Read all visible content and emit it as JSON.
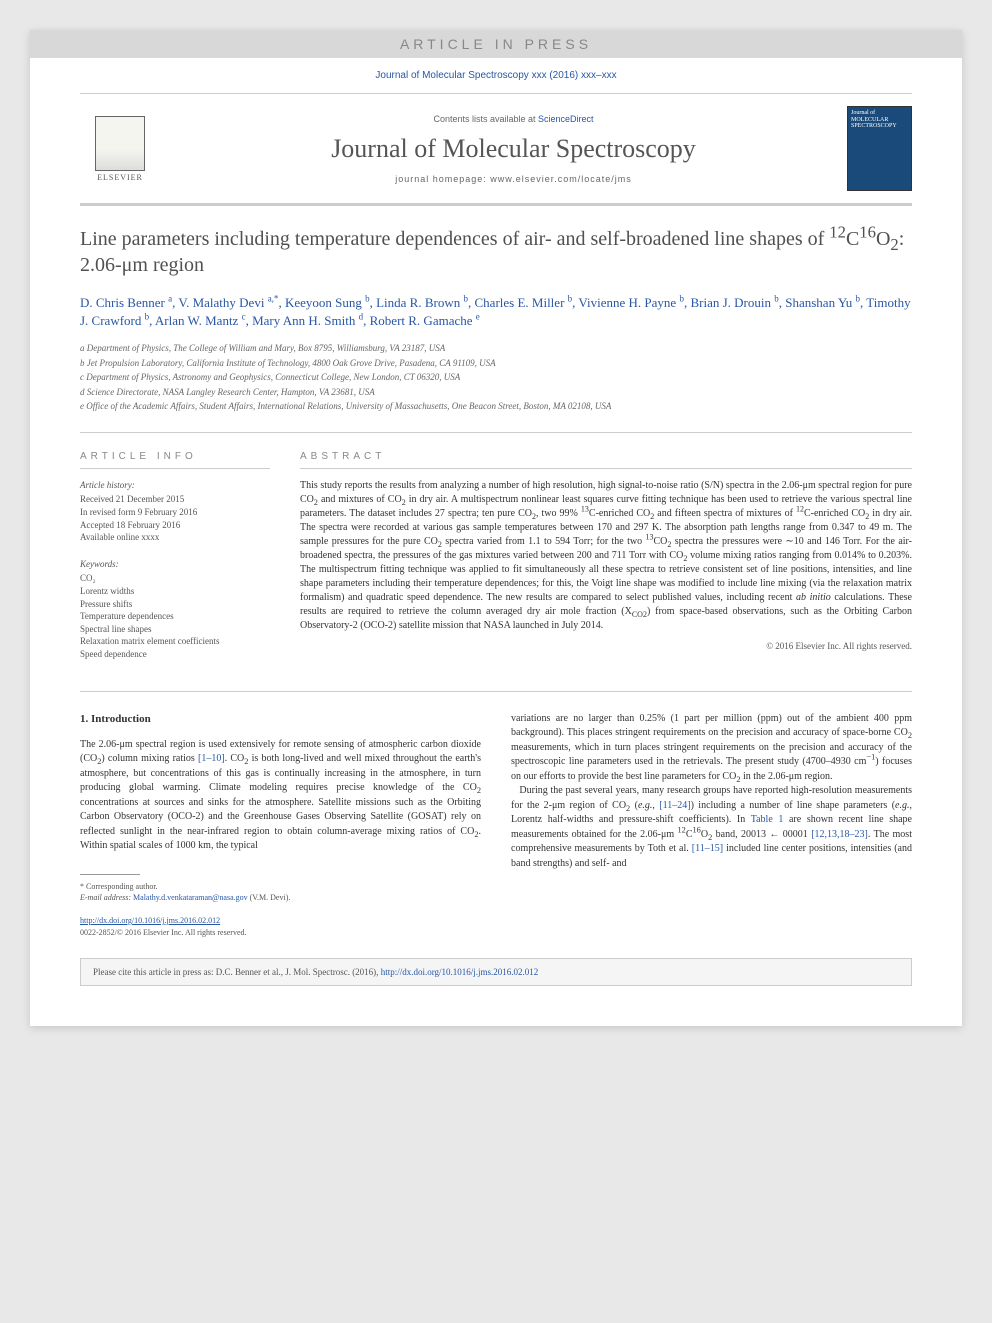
{
  "banner": {
    "press": "ARTICLE IN PRESS",
    "citation": "Journal of Molecular Spectroscopy xxx (2016) xxx–xxx"
  },
  "header": {
    "publisher": "ELSEVIER",
    "contents_prefix": "Contents lists available at ",
    "contents_link": "ScienceDirect",
    "journal": "Journal of Molecular Spectroscopy",
    "homepage": "journal homepage: www.elsevier.com/locate/jms",
    "cover_line1": "Journal of",
    "cover_line2": "MOLECULAR SPECTROSCOPY"
  },
  "article": {
    "title_html": "Line parameters including temperature dependences of air- and self-broadened line shapes of <sup>12</sup>C<sup>16</sup>O<sub>2</sub>: 2.06-μm region",
    "authors_html": "D. Chris Benner <sup>a</sup>, V. Malathy Devi <sup>a,*</sup>, Keeyoon Sung <sup>b</sup>, Linda R. Brown <sup>b</sup>, Charles E. Miller <sup>b</sup>, Vivienne H. Payne <sup>b</sup>, Brian J. Drouin <sup>b</sup>, Shanshan Yu <sup>b</sup>, Timothy J. Crawford <sup>b</sup>, Arlan W. Mantz <sup>c</sup>, Mary Ann H. Smith <sup>d</sup>, Robert R. Gamache <sup>e</sup>",
    "affiliations": [
      "a Department of Physics, The College of William and Mary, Box 8795, Williamsburg, VA 23187, USA",
      "b Jet Propulsion Laboratory, California Institute of Technology, 4800 Oak Grove Drive, Pasadena, CA 91109, USA",
      "c Department of Physics, Astronomy and Geophysics, Connecticut College, New London, CT 06320, USA",
      "d Science Directorate, NASA Langley Research Center, Hampton, VA 23681, USA",
      "e Office of the Academic Affairs, Student Affairs, International Relations, University of Massachusetts, One Beacon Street, Boston, MA 02108, USA"
    ]
  },
  "info": {
    "heading": "ARTICLE INFO",
    "history_label": "Article history:",
    "history": [
      "Received 21 December 2015",
      "In revised form 9 February 2016",
      "Accepted 18 February 2016",
      "Available online xxxx"
    ],
    "keywords_label": "Keywords:",
    "keywords": [
      "CO₂",
      "Lorentz widths",
      "Pressure shifts",
      "Temperature dependences",
      "Spectral line shapes",
      "Relaxation matrix element coefficients",
      "Speed dependence"
    ]
  },
  "abstract": {
    "heading": "ABSTRACT",
    "body_html": "This study reports the results from analyzing a number of high resolution, high signal-to-noise ratio (S/N) spectra in the 2.06-μm spectral region for pure CO<sub>2</sub> and mixtures of CO<sub>2</sub> in dry air. A multispectrum nonlinear least squares curve fitting technique has been used to retrieve the various spectral line parameters. The dataset includes 27 spectra; ten pure CO<sub>2</sub>, two 99% <sup>13</sup>C-enriched CO<sub>2</sub> and fifteen spectra of mixtures of <sup>12</sup>C-enriched CO<sub>2</sub> in dry air. The spectra were recorded at various gas sample temperatures between 170 and 297 K. The absorption path lengths range from 0.347 to 49 m. The sample pressures for the pure CO<sub>2</sub> spectra varied from 1.1 to 594 Torr; for the two <sup>13</sup>CO<sub>2</sub> spectra the pressures were ∼10 and 146 Torr. For the air-broadened spectra, the pressures of the gas mixtures varied between 200 and 711 Torr with CO<sub>2</sub> volume mixing ratios ranging from 0.014% to 0.203%. The multispectrum fitting technique was applied to fit simultaneously all these spectra to retrieve consistent set of line positions, intensities, and line shape parameters including their temperature dependences; for this, the Voigt line shape was modified to include line mixing (via the relaxation matrix formalism) and quadratic speed dependence. The new results are compared to select published values, including recent <i>ab initio</i> calculations. These results are required to retrieve the column averaged dry air mole fraction (X<sub>CO2</sub>) from space-based observations, such as the Orbiting Carbon Observatory-2 (OCO-2) satellite mission that NASA launched in July 2014.",
    "copyright": "© 2016 Elsevier Inc. All rights reserved."
  },
  "intro": {
    "heading": "1. Introduction",
    "col1_html": "The 2.06-μm spectral region is used extensively for remote sensing of atmospheric carbon dioxide (CO<sub>2</sub>) column mixing ratios <span class=\"ref\">[1–10]</span>. CO<sub>2</sub> is both long-lived and well mixed throughout the earth's atmosphere, but concentrations of this gas is continually increasing in the atmosphere, in turn producing global warming. Climate modeling requires precise knowledge of the CO<sub>2</sub> concentrations at sources and sinks for the atmosphere. Satellite missions such as the Orbiting Carbon Observatory (OCO-2) and the Greenhouse Gases Observing Satellite (GOSAT) rely on reflected sunlight in the near-infrared region to obtain column-average mixing ratios of CO<sub>2</sub>. Within spatial scales of 1000 km, the typical",
    "col2_html": "variations are no larger than 0.25% (1 part per million (ppm) out of the ambient 400 ppm background). This places stringent requirements on the precision and accuracy of space-borne CO<sub>2</sub> measurements, which in turn places stringent requirements on the precision and accuracy of the spectroscopic line parameters used in the retrievals. The present study (4700–4930 cm<sup>−1</sup>) focuses on our efforts to provide the best line parameters for CO<sub>2</sub> in the 2.06-μm region.<br>&nbsp;&nbsp;&nbsp;During the past several years, many research groups have reported high-resolution measurements for the 2-μm region of CO<sub>2</sub> (<i>e.g.</i>, <span class=\"ref\">[11–24]</span>) including a number of line shape parameters (<i>e.g.</i>, Lorentz half-widths and pressure-shift coefficients). In <span class=\"ref\">Table 1</span> are shown recent line shape measurements obtained for the 2.06-μm <sup>12</sup>C<sup>16</sup>O<sub>2</sub> band, 20013 ← 00001 <span class=\"ref\">[12,13,18–23]</span>. The most comprehensive measurements by Toth et al. <span class=\"ref\">[11–15]</span> included line center positions, intensities (and band strengths) and self- and"
  },
  "footnote": {
    "corresponding": "* Corresponding author.",
    "email_label": "E-mail address: ",
    "email": "Malathy.d.venkataraman@nasa.gov",
    "email_who": " (V.M. Devi)."
  },
  "doi": {
    "link": "http://dx.doi.org/10.1016/j.jms.2016.02.012",
    "issn": "0022-2852/© 2016 Elsevier Inc. All rights reserved."
  },
  "footer": {
    "prefix": "Please cite this article in press as: D.C. Benner et al., J. Mol. Spectrosc. (2016), ",
    "link": "http://dx.doi.org/10.1016/j.jms.2016.02.012"
  },
  "colors": {
    "link": "#2857a5",
    "text": "#333333",
    "muted": "#666666",
    "banner_bg": "#d8d8d8",
    "cover_bg": "#1a4a7a"
  },
  "typography": {
    "journal_name_size": 26,
    "title_size": 20,
    "authors_size": 13,
    "body_size": 10,
    "abstract_size": 10,
    "footnote_size": 8
  }
}
